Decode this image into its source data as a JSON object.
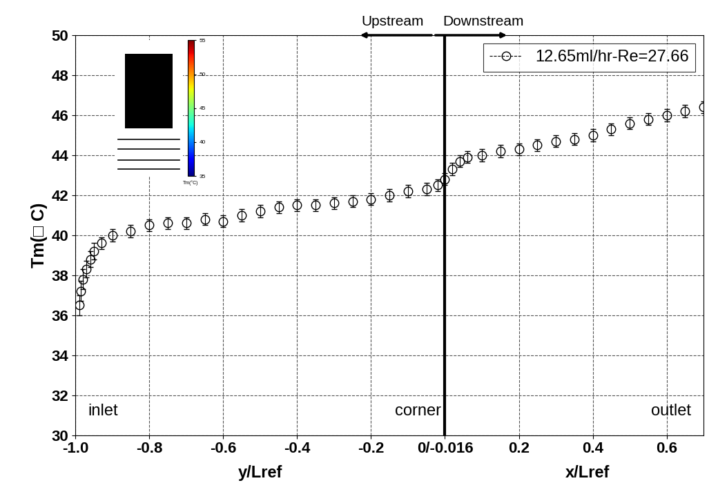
{
  "chart_data": {
    "type": "scatter",
    "xlabels": [
      "y/Lref",
      "x/Lref"
    ],
    "ylabel": "Tm(□ C)",
    "annotations": [
      "inlet",
      "corner",
      "outlet"
    ],
    "direction_labels": [
      "Upstream",
      "Downstream"
    ],
    "x": [
      -0.99,
      -0.985,
      -0.98,
      -0.97,
      -0.96,
      -0.95,
      -0.93,
      -0.9,
      -0.85,
      -0.8,
      -0.75,
      -0.7,
      -0.65,
      -0.6,
      -0.55,
      -0.5,
      -0.45,
      -0.4,
      -0.35,
      -0.3,
      -0.25,
      -0.2,
      -0.15,
      -0.1,
      -0.05,
      -0.02,
      0.0,
      0.02,
      0.04,
      0.06,
      0.1,
      0.15,
      0.2,
      0.25,
      0.3,
      0.35,
      0.4,
      0.45,
      0.5,
      0.55,
      0.6,
      0.65,
      0.7
    ],
    "series": [
      {
        "name": "12.65ml/hr-Re=27.66",
        "color": "#000000",
        "marker": "o",
        "line_style": "dashed",
        "values": [
          36.5,
          37.2,
          37.8,
          38.3,
          38.8,
          39.2,
          39.6,
          40.0,
          40.2,
          40.5,
          40.6,
          40.6,
          40.8,
          40.7,
          41.0,
          41.2,
          41.4,
          41.5,
          41.5,
          41.6,
          41.7,
          41.8,
          42.0,
          42.2,
          42.3,
          42.5,
          42.8,
          43.3,
          43.7,
          43.9,
          44.0,
          44.2,
          44.3,
          44.5,
          44.7,
          44.8,
          45.0,
          45.3,
          45.6,
          45.8,
          46.0,
          46.2,
          46.4
        ],
        "errors": [
          0.5,
          0.5,
          0.5,
          0.4,
          0.4,
          0.4,
          0.3,
          0.3,
          0.3,
          0.3,
          0.3,
          0.3,
          0.3,
          0.3,
          0.3,
          0.3,
          0.3,
          0.3,
          0.3,
          0.3,
          0.3,
          0.3,
          0.3,
          0.3,
          0.3,
          0.3,
          0.3,
          0.3,
          0.3,
          0.3,
          0.3,
          0.3,
          0.3,
          0.3,
          0.3,
          0.3,
          0.3,
          0.3,
          0.3,
          0.3,
          0.3,
          0.3,
          0.3
        ]
      }
    ],
    "xlim": [
      -1.0,
      0.7
    ],
    "xticks": [
      {
        "value": -1.0,
        "label": "-1.0"
      },
      -0.8,
      -0.6,
      -0.4,
      -0.2,
      {
        "value": 0,
        "label": "0/-0.016"
      },
      0.2,
      0.4,
      0.6
    ],
    "ylim": [
      30,
      50
    ],
    "yticks": [
      30,
      32,
      34,
      36,
      38,
      40,
      42,
      44,
      46,
      48,
      50
    ],
    "grid": true,
    "legend": "upper right",
    "inset": {
      "colorbar_label": "Tm(°C)",
      "colorbar_range": [
        35,
        55
      ],
      "colorbar_ticks": [
        35,
        40,
        45,
        50,
        55
      ]
    }
  }
}
